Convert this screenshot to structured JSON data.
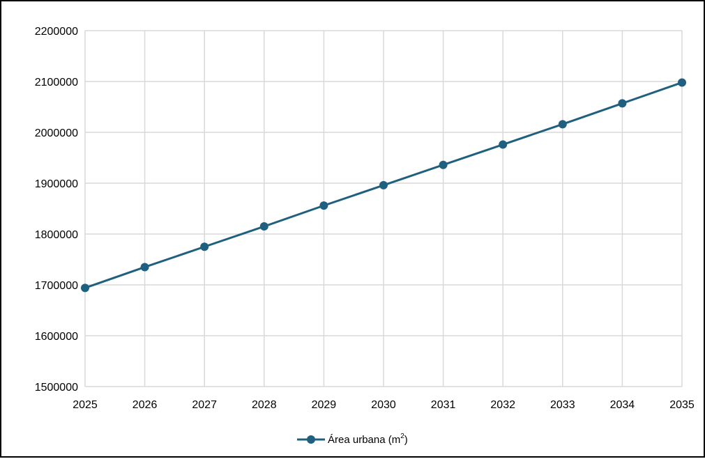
{
  "chart_data": {
    "type": "line",
    "title": "",
    "xlabel": "",
    "ylabel": "",
    "categories": [
      "2025",
      "2026",
      "2027",
      "2028",
      "2029",
      "2030",
      "2031",
      "2032",
      "2033",
      "2034",
      "2035"
    ],
    "x": [
      2025,
      2026,
      2027,
      2028,
      2029,
      2030,
      2031,
      2032,
      2033,
      2034,
      2035
    ],
    "ylim": [
      1500000,
      2200000
    ],
    "yticks": [
      "1500000",
      "1600000",
      "1700000",
      "1800000",
      "1900000",
      "2000000",
      "2100000",
      "2200000"
    ],
    "grid": true,
    "legend_position": "bottom",
    "series": [
      {
        "name": "Área urbana (m",
        "name_superscript": "2",
        "name_suffix": ")",
        "color": "#1f5f7f",
        "marker": "circle",
        "values": [
          1694000,
          1735000,
          1775000,
          1815000,
          1856000,
          1896000,
          1936000,
          1976000,
          2016000,
          2057000,
          2098000
        ]
      }
    ]
  }
}
